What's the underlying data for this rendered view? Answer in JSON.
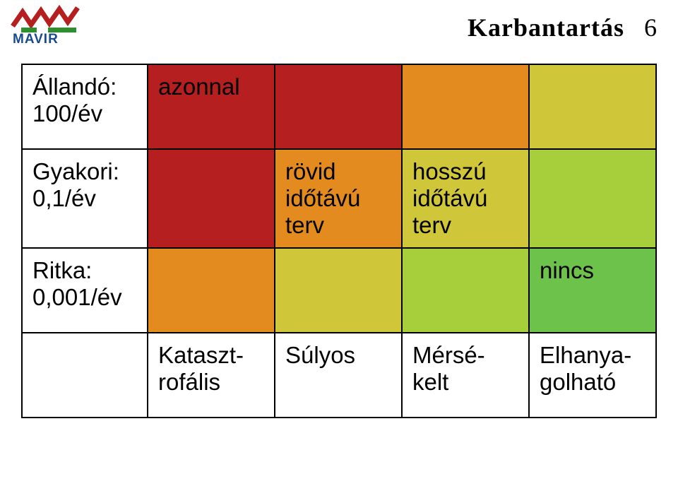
{
  "header": {
    "title": "Karbantartás",
    "page_number": "6",
    "title_fontfamily": "Times New Roman, serif",
    "title_fontsize": 36,
    "title_weight": 700,
    "title_color": "#000000"
  },
  "logo": {
    "brand": "MAVIR",
    "text_color": "#184a8c",
    "colors": {
      "red": "#b51f1f",
      "green": "#2f8f2f"
    }
  },
  "matrix": {
    "type": "table",
    "cell_border_color": "#000000",
    "cell_border_width": 2,
    "cell_fontsize": 33,
    "cell_text_color": "#000000",
    "palette": {
      "dark_red": "#b51f1f",
      "orange": "#e38b1e",
      "olive": "#d0c63a",
      "yellowgreen": "#a6cf3b",
      "green": "#6cc24a",
      "white": "#ffffff"
    },
    "row_labels": [
      "Állandó:\n100/év",
      "Gyakori:\n0,1/év",
      "Ritka:\n0,001/év",
      ""
    ],
    "column_labels": [
      "",
      "Kataszt-\nrofális",
      "Súlyos",
      "Mérsé-\nkelt",
      "Elhanya-\ngolható"
    ],
    "cells": [
      [
        {
          "text": "Állandó:\n100/év",
          "bg": "#ffffff"
        },
        {
          "text": "azonnal",
          "bg": "#b51f1f"
        },
        {
          "text": "",
          "bg": "#b51f1f"
        },
        {
          "text": "",
          "bg": "#e38b1e"
        },
        {
          "text": "",
          "bg": "#d0c63a"
        }
      ],
      [
        {
          "text": "Gyakori:\n0,1/év",
          "bg": "#ffffff"
        },
        {
          "text": "",
          "bg": "#b51f1f"
        },
        {
          "text": "rövid\nidőtávú\nterv",
          "bg": "#e38b1e"
        },
        {
          "text": "hosszú\nidőtávú\nterv",
          "bg": "#d0c63a"
        },
        {
          "text": "",
          "bg": "#a6cf3b"
        }
      ],
      [
        {
          "text": "Ritka:\n0,001/év",
          "bg": "#ffffff"
        },
        {
          "text": "",
          "bg": "#e38b1e"
        },
        {
          "text": "",
          "bg": "#d0c63a"
        },
        {
          "text": "",
          "bg": "#a6cf3b"
        },
        {
          "text": "nincs",
          "bg": "#6cc24a"
        }
      ],
      [
        {
          "text": "",
          "bg": "#ffffff"
        },
        {
          "text": "Kataszt-\nrofális",
          "bg": "#ffffff"
        },
        {
          "text": "Súlyos",
          "bg": "#ffffff"
        },
        {
          "text": "Mérsé-\nkelt",
          "bg": "#ffffff"
        },
        {
          "text": "Elhanya-\ngolható",
          "bg": "#ffffff"
        }
      ]
    ]
  }
}
